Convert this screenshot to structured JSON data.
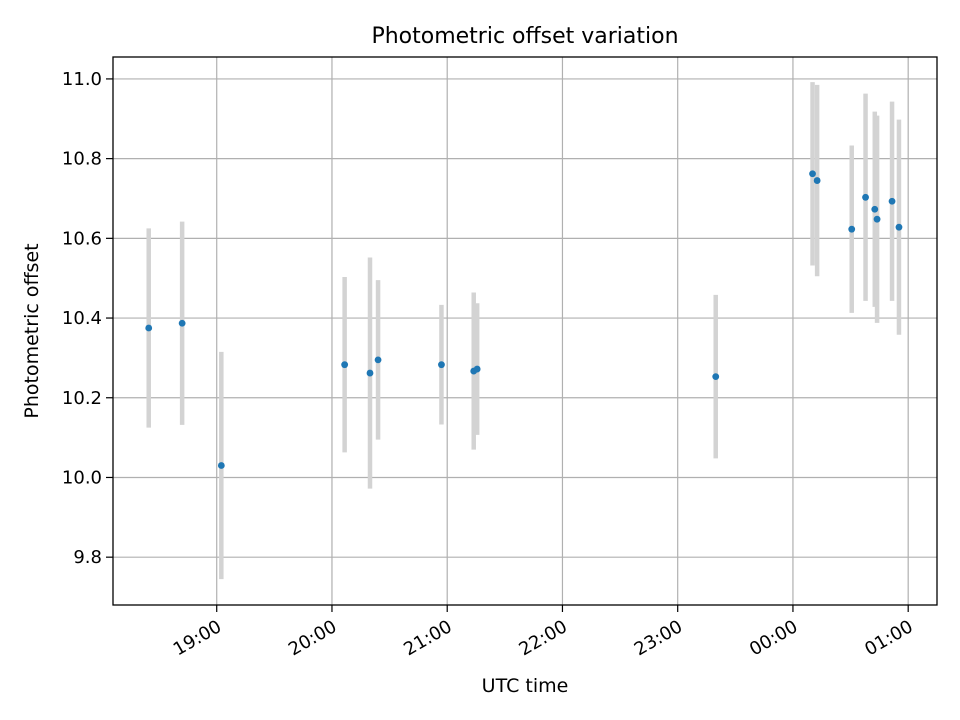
{
  "chart_data": {
    "type": "scatter",
    "title": "Photometric offset variation",
    "xlabel": "UTC time",
    "ylabel": "Photometric offset",
    "xlim_hours": [
      18.1,
      25.25
    ],
    "ylim": [
      9.68,
      11.055
    ],
    "grid": true,
    "point_color": "#1f77b4",
    "errorbar_color": "#d3d3d3",
    "x_ticks": [
      {
        "value": 19.0,
        "label": "19:00"
      },
      {
        "value": 20.0,
        "label": "20:00"
      },
      {
        "value": 21.0,
        "label": "21:00"
      },
      {
        "value": 22.0,
        "label": "22:00"
      },
      {
        "value": 23.0,
        "label": "23:00"
      },
      {
        "value": 24.0,
        "label": "00:00"
      },
      {
        "value": 25.0,
        "label": "01:00"
      }
    ],
    "y_ticks": [
      {
        "value": 9.8,
        "label": "9.8"
      },
      {
        "value": 10.0,
        "label": "10.0"
      },
      {
        "value": 10.2,
        "label": "10.2"
      },
      {
        "value": 10.4,
        "label": "10.4"
      },
      {
        "value": 10.6,
        "label": "10.6"
      },
      {
        "value": 10.8,
        "label": "10.8"
      },
      {
        "value": 11.0,
        "label": "11.0"
      }
    ],
    "points": [
      {
        "x": 18.41,
        "y": 10.375,
        "err": 0.25
      },
      {
        "x": 18.7,
        "y": 10.387,
        "err": 0.255
      },
      {
        "x": 19.04,
        "y": 10.03,
        "err": 0.285
      },
      {
        "x": 20.11,
        "y": 10.283,
        "err": 0.22
      },
      {
        "x": 20.33,
        "y": 10.262,
        "err": 0.29
      },
      {
        "x": 20.4,
        "y": 10.295,
        "err": 0.2
      },
      {
        "x": 20.95,
        "y": 10.283,
        "err": 0.15
      },
      {
        "x": 21.23,
        "y": 10.267,
        "err": 0.197
      },
      {
        "x": 21.26,
        "y": 10.272,
        "err": 0.165
      },
      {
        "x": 23.33,
        "y": 10.253,
        "err": 0.205
      },
      {
        "x": 24.17,
        "y": 10.762,
        "err": 0.23
      },
      {
        "x": 24.21,
        "y": 10.745,
        "err": 0.24
      },
      {
        "x": 24.51,
        "y": 10.623,
        "err": 0.21
      },
      {
        "x": 24.63,
        "y": 10.703,
        "err": 0.26
      },
      {
        "x": 24.71,
        "y": 10.673,
        "err": 0.245
      },
      {
        "x": 24.73,
        "y": 10.648,
        "err": 0.26
      },
      {
        "x": 24.86,
        "y": 10.693,
        "err": 0.25
      },
      {
        "x": 24.92,
        "y": 10.628,
        "err": 0.27
      }
    ]
  }
}
